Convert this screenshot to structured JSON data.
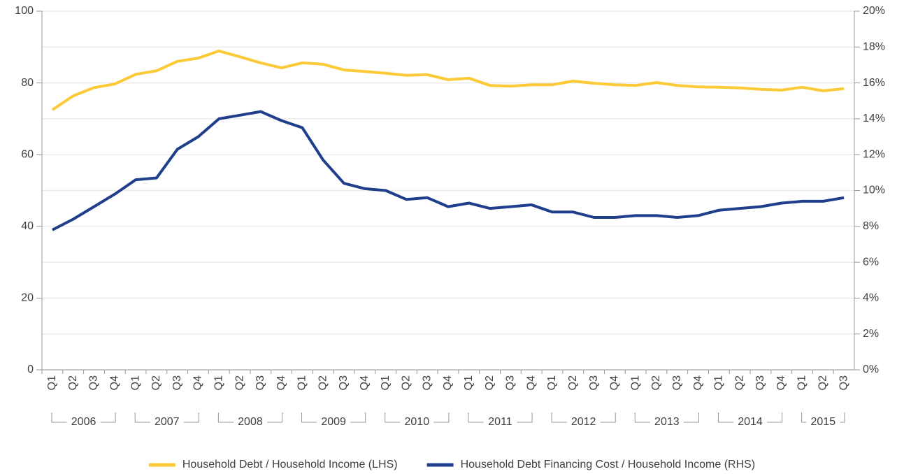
{
  "chart_data": {
    "type": "line",
    "categories": [
      "Q1",
      "Q2",
      "Q3",
      "Q4",
      "Q1",
      "Q2",
      "Q3",
      "Q4",
      "Q1",
      "Q2",
      "Q3",
      "Q4",
      "Q1",
      "Q2",
      "Q3",
      "Q4",
      "Q1",
      "Q2",
      "Q3",
      "Q4",
      "Q1",
      "Q2",
      "Q3",
      "Q4",
      "Q1",
      "Q2",
      "Q3",
      "Q4",
      "Q1",
      "Q2",
      "Q3",
      "Q4",
      "Q1",
      "Q2",
      "Q3",
      "Q4",
      "Q1",
      "Q2",
      "Q3"
    ],
    "groups": [
      "2006",
      "2007",
      "2008",
      "2009",
      "2010",
      "2011",
      "2012",
      "2013",
      "2014",
      "2015"
    ],
    "series": [
      {
        "name": "Household Debt / Household Income (LHS)",
        "color": "#fcc937",
        "values": [
          72.5,
          76.4,
          78.7,
          79.7,
          82.4,
          83.4,
          86,
          86.9,
          88.9,
          87.3,
          85.6,
          84.2,
          85.6,
          85.2,
          83.6,
          83.2,
          82.7,
          82.1,
          82.3,
          80.9,
          81.3,
          79.3,
          79.1,
          79.5,
          79.5,
          80.5,
          79.9,
          79.5,
          79.3,
          80.1,
          79.3,
          78.9,
          78.8,
          78.6,
          78.2,
          78.0,
          78.8,
          77.8,
          78.4
        ]
      },
      {
        "name": "Household Debt Financing Cost / Household Income (RHS)",
        "color": "#1f3f8c",
        "axis": "y2",
        "values": [
          7.8,
          8.4,
          9.1,
          9.8,
          10.6,
          10.7,
          12.3,
          13.0,
          14.0,
          14.2,
          14.4,
          13.9,
          13.5,
          11.7,
          10.4,
          10.1,
          10.0,
          9.5,
          9.6,
          9.1,
          9.3,
          9.0,
          9.1,
          9.2,
          8.8,
          8.8,
          8.5,
          8.5,
          8.6,
          8.6,
          8.5,
          8.6,
          8.9,
          9.0,
          9.1,
          9.3,
          9.4,
          9.4,
          9.6
        ]
      }
    ],
    "ylim": [
      0,
      100
    ],
    "yticks": [
      0,
      20,
      40,
      60,
      80,
      100
    ],
    "y2lim": [
      0,
      20
    ],
    "y2ticks": [
      {
        "value": 0,
        "label": "0%"
      },
      {
        "value": 2,
        "label": "2%"
      },
      {
        "value": 4,
        "label": "4%"
      },
      {
        "value": 6,
        "label": "6%"
      },
      {
        "value": 8,
        "label": "8%"
      },
      {
        "value": 10,
        "label": "10%"
      },
      {
        "value": 12,
        "label": "12%"
      },
      {
        "value": 14,
        "label": "14%"
      },
      {
        "value": 16,
        "label": "16%"
      },
      {
        "value": 18,
        "label": "18%"
      },
      {
        "value": 20,
        "label": "20%"
      }
    ],
    "grid": true,
    "legend": "bottom"
  }
}
